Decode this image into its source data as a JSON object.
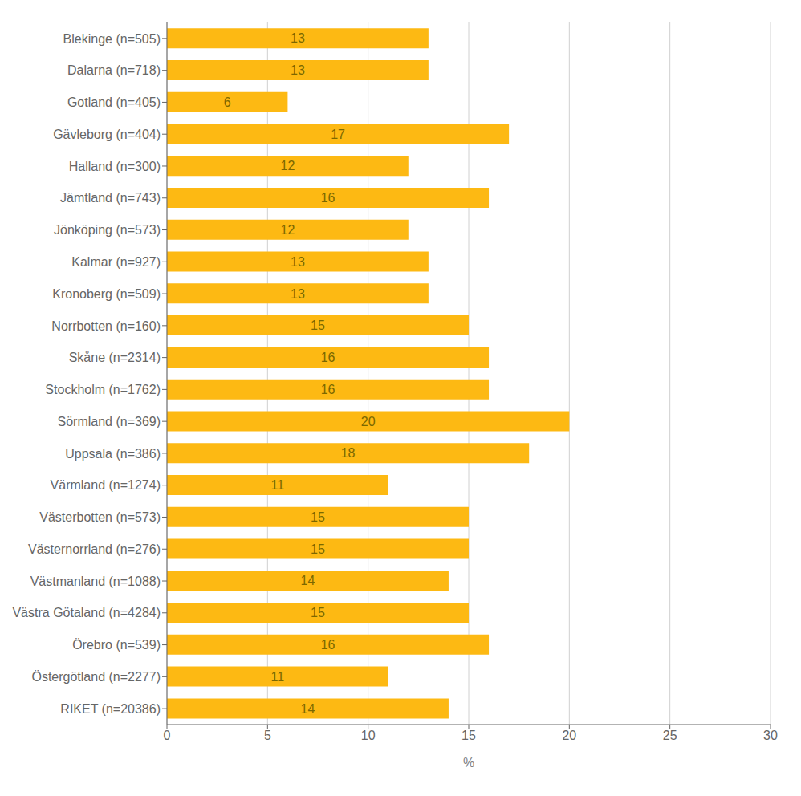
{
  "chart_data": {
    "type": "bar",
    "orientation": "horizontal",
    "categories": [
      "Blekinge (n=505)",
      "Dalarna (n=718)",
      "Gotland (n=405)",
      "Gävleborg (n=404)",
      "Halland (n=300)",
      "Jämtland (n=743)",
      "Jönköping (n=573)",
      "Kalmar (n=927)",
      "Kronoberg (n=509)",
      "Norrbotten (n=160)",
      "Skåne (n=2314)",
      "Stockholm (n=1762)",
      "Sörmland (n=369)",
      "Uppsala (n=386)",
      "Värmland (n=1274)",
      "Västerbotten (n=573)",
      "Västernorrland (n=276)",
      "Västmanland (n=1088)",
      "Västra Götaland (n=4284)",
      "Örebro (n=539)",
      "Östergötland (n=2277)",
      "RIKET (n=20386)"
    ],
    "values": [
      13,
      13,
      6,
      17,
      12,
      16,
      12,
      13,
      13,
      15,
      16,
      16,
      20,
      18,
      11,
      15,
      15,
      14,
      15,
      16,
      11,
      14
    ],
    "color": "#FDB913",
    "xlabel": "%",
    "xlim": [
      0,
      30
    ],
    "xticks": [
      0,
      5,
      10,
      15,
      20,
      25,
      30
    ],
    "grid": true,
    "data_labels": true
  }
}
